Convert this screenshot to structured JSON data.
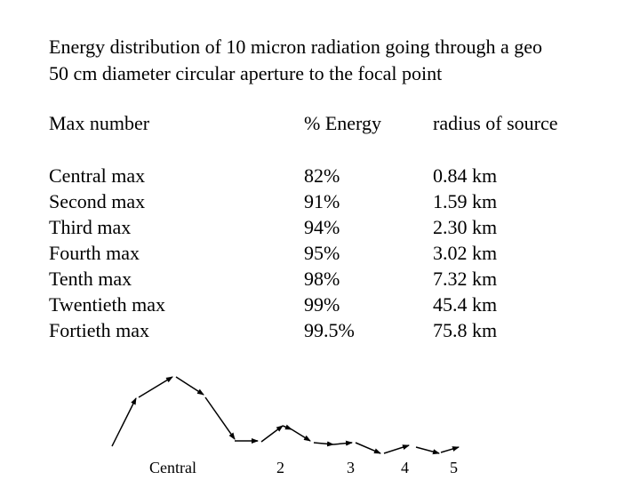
{
  "title": {
    "line1": "Energy distribution of 10 micron radiation going through a geo",
    "line2": "50 cm diameter circular aperture to the focal point"
  },
  "table": {
    "headers": [
      "Max number",
      "% Energy",
      "radius of source"
    ],
    "rows": [
      {
        "max": "Central max",
        "energy": "82%",
        "radius": "0.84 km"
      },
      {
        "max": "Second max",
        "energy": "91%",
        "radius": "1.59 km"
      },
      {
        "max": "Third max",
        "energy": "94%",
        "radius": "2.30 km"
      },
      {
        "max": "Fourth max",
        "energy": "95%",
        "radius": "3.02 km"
      },
      {
        "max": "Tenth max",
        "energy": "98%",
        "radius": "7.32 km"
      },
      {
        "max": "Twentieth max",
        "energy": "99%",
        "radius": "45.4 km"
      },
      {
        "max": "Fortieth max",
        "energy": "99.5%",
        "radius": "75.8 km"
      }
    ]
  },
  "diagram": {
    "labels": [
      "Central",
      "2",
      "3",
      "4",
      "5"
    ],
    "colors": {
      "line": "#000000"
    }
  }
}
